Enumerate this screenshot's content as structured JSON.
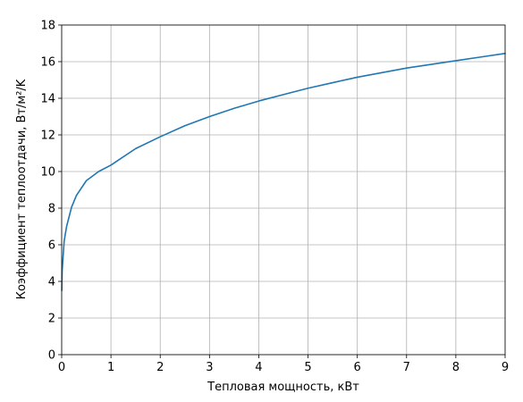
{
  "chart_data": {
    "type": "line",
    "title": "",
    "xlabel": "Тепловая мощность, кВт",
    "ylabel": "Коэффициент теплоотдачи, Вт/м²/K",
    "xlim": [
      0,
      9
    ],
    "ylim": [
      0,
      18
    ],
    "xticks": [
      0,
      1,
      2,
      3,
      4,
      5,
      6,
      7,
      8,
      9
    ],
    "yticks": [
      0,
      2,
      4,
      6,
      8,
      10,
      12,
      14,
      16,
      18
    ],
    "grid": true,
    "series": [
      {
        "color": "#1f77b4",
        "x": [
          0.002,
          0.01,
          0.05,
          0.1,
          0.2,
          0.3,
          0.5,
          0.75,
          1,
          1.5,
          2,
          2.5,
          3,
          3.5,
          4,
          4.5,
          5,
          5.5,
          6,
          6.5,
          7,
          7.5,
          8,
          8.5,
          9
        ],
        "y": [
          3.5,
          4.6,
          6.2,
          7.0,
          8.05,
          8.7,
          9.5,
          10.0,
          10.35,
          11.25,
          11.9,
          12.5,
          13.0,
          13.45,
          13.85,
          14.2,
          14.55,
          14.85,
          15.15,
          15.4,
          15.65,
          15.85,
          16.05,
          16.25,
          16.45
        ]
      }
    ]
  }
}
